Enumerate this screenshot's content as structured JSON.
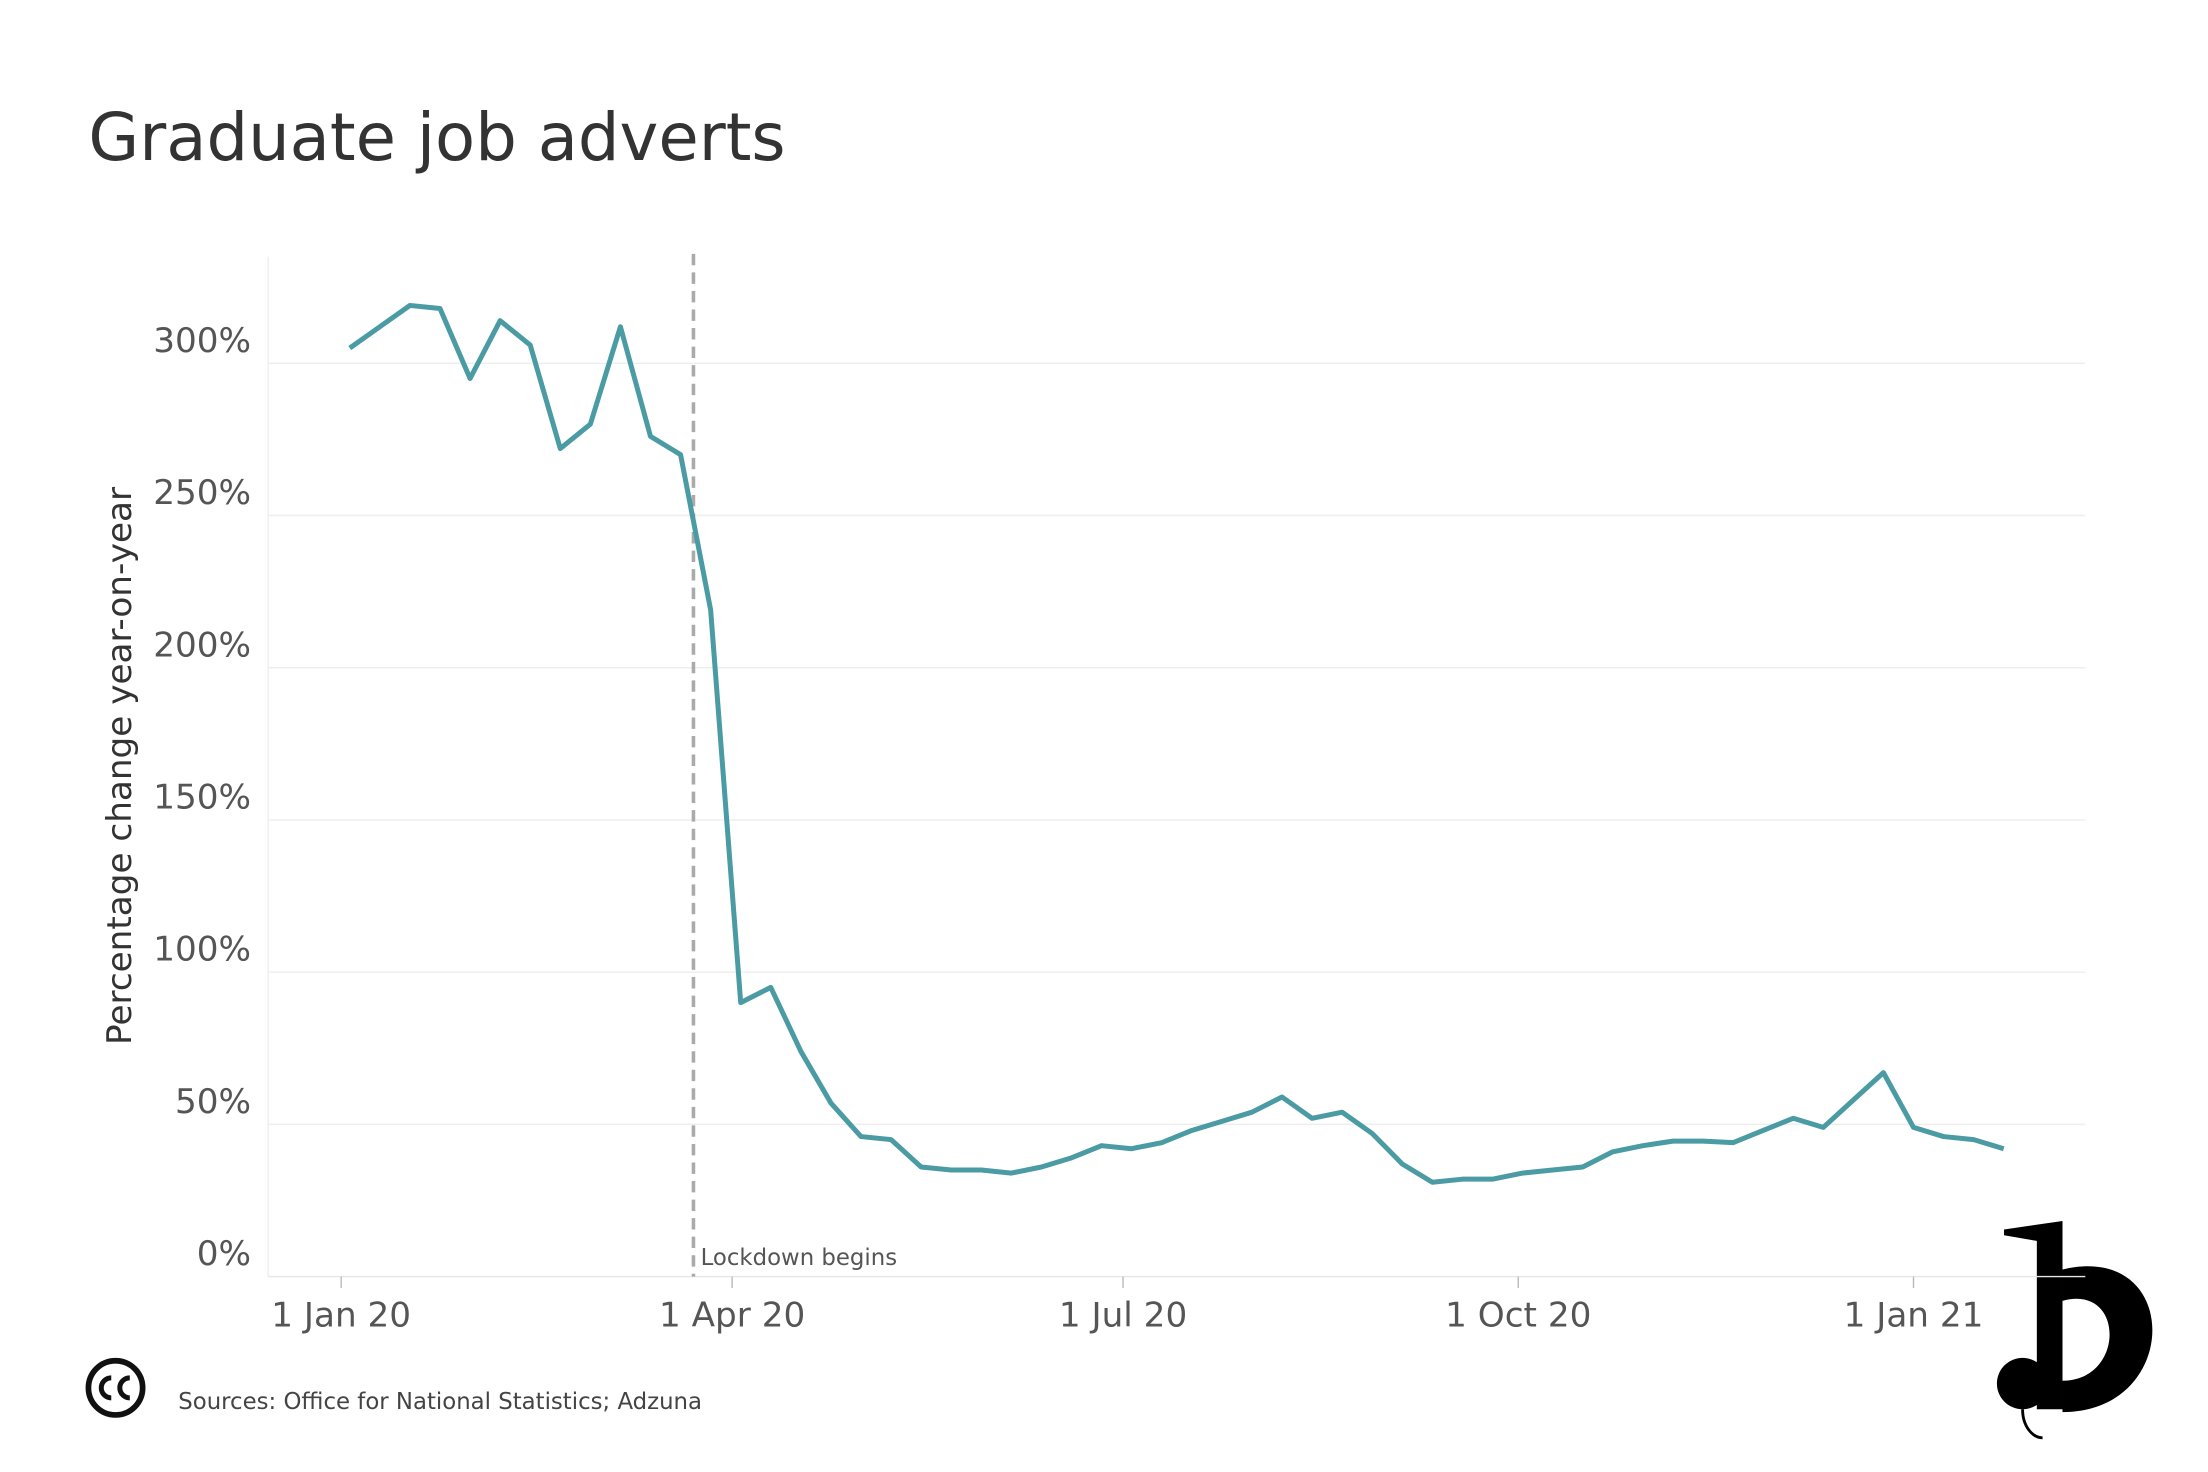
{
  "chart_data": {
    "type": "line",
    "title": "Graduate job adverts",
    "y_label": "Percentage change year-on-year",
    "source": "Sources: Office for National Statistics; Adzuna",
    "annotation": {
      "x": "2020-03-23",
      "label": "Lockdown begins"
    },
    "xlim": [
      "2019-12-15",
      "2021-02-10"
    ],
    "xticks": [
      {
        "value": "2020-01-01",
        "label": "1 Jan 20"
      },
      {
        "value": "2020-04-01",
        "label": "1 Apr 20"
      },
      {
        "value": "2020-07-01",
        "label": "1 Jul 20"
      },
      {
        "value": "2020-10-01",
        "label": "1 Oct 20"
      },
      {
        "value": "2021-01-01",
        "label": "1 Jan 21"
      }
    ],
    "ylim": [
      0,
      335
    ],
    "yticks": [
      {
        "value": 0,
        "label": "0%"
      },
      {
        "value": 50,
        "label": "50%"
      },
      {
        "value": 100,
        "label": "100%"
      },
      {
        "value": 150,
        "label": "150%"
      },
      {
        "value": 200,
        "label": "200%"
      },
      {
        "value": 250,
        "label": "250%"
      },
      {
        "value": 300,
        "label": "300%"
      }
    ],
    "grid": true,
    "x": [
      "2020-01-03",
      "2020-01-10",
      "2020-01-17",
      "2020-01-24",
      "2020-01-31",
      "2020-02-07",
      "2020-02-14",
      "2020-02-21",
      "2020-02-28",
      "2020-03-06",
      "2020-03-13",
      "2020-03-20",
      "2020-03-27",
      "2020-04-03",
      "2020-04-10",
      "2020-04-17",
      "2020-04-24",
      "2020-05-01",
      "2020-05-08",
      "2020-05-15",
      "2020-05-22",
      "2020-05-29",
      "2020-06-05",
      "2020-06-12",
      "2020-06-19",
      "2020-06-26",
      "2020-07-03",
      "2020-07-10",
      "2020-07-17",
      "2020-07-24",
      "2020-07-31",
      "2020-08-07",
      "2020-08-14",
      "2020-08-21",
      "2020-08-28",
      "2020-09-04",
      "2020-09-11",
      "2020-09-18",
      "2020-09-25",
      "2020-10-02",
      "2020-10-09",
      "2020-10-16",
      "2020-10-23",
      "2020-10-30",
      "2020-11-06",
      "2020-11-13",
      "2020-11-20",
      "2020-11-27",
      "2020-12-04",
      "2020-12-11",
      "2020-12-18",
      "2020-12-25",
      "2021-01-01",
      "2021-01-08",
      "2021-01-15",
      "2021-01-22"
    ],
    "series": [
      {
        "name": "Graduate job adverts",
        "color": "#4a9ba3",
        "values": [
          305,
          312,
          319,
          318,
          295,
          314,
          306,
          272,
          280,
          312,
          276,
          270,
          219,
          90,
          95,
          74,
          57,
          46,
          45,
          36,
          35,
          35,
          34,
          36,
          39,
          43,
          42,
          44,
          48,
          51,
          54,
          59,
          52,
          54,
          47,
          37,
          31,
          32,
          32,
          34,
          35,
          36,
          41,
          43,
          44.5,
          44.5,
          44,
          48,
          52,
          49,
          58,
          67,
          49,
          46,
          45,
          42
        ]
      }
    ]
  }
}
